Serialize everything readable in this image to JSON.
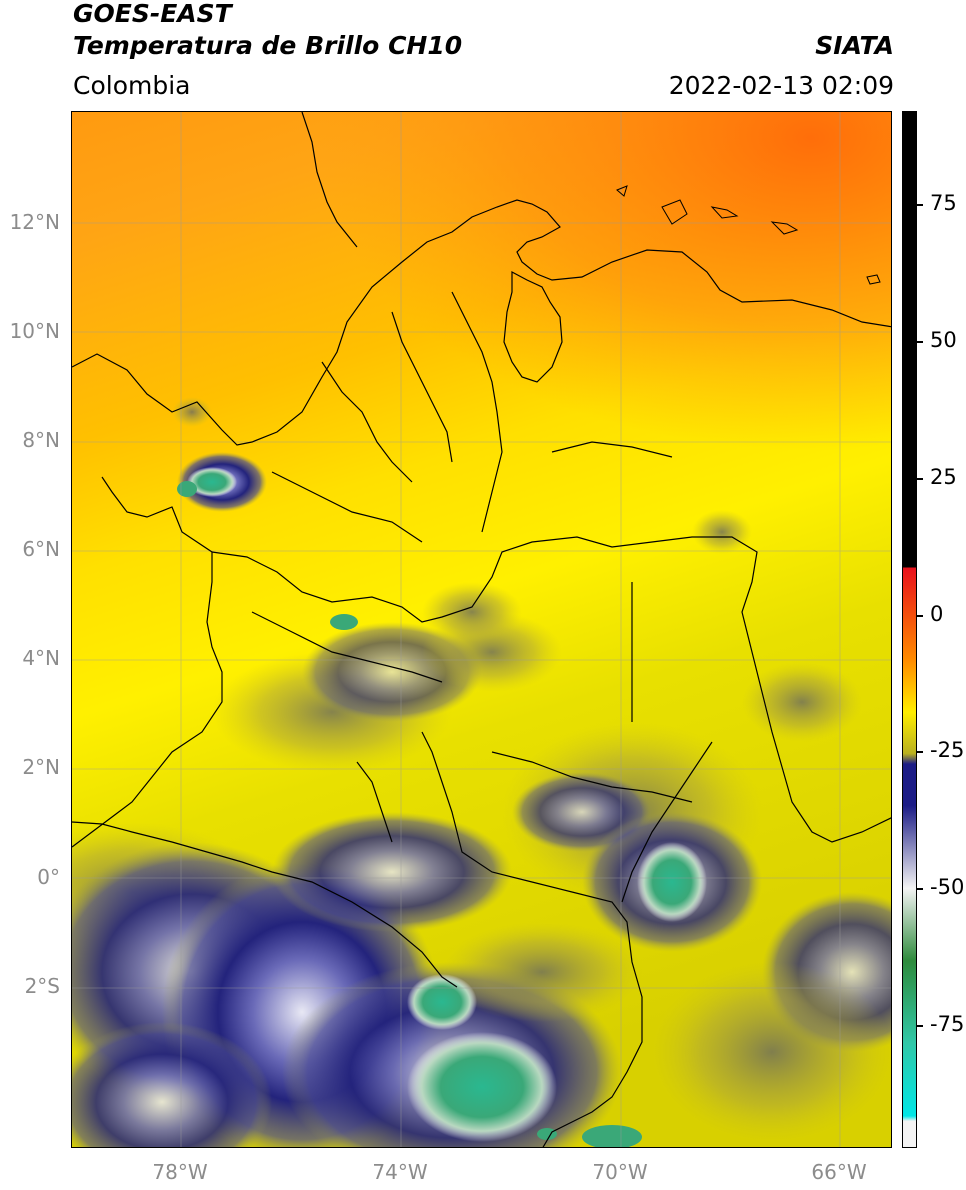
{
  "header": {
    "title_line1": "GOES-EAST",
    "title_line2": "Temperatura de Brillo CH10",
    "region": "Colombia",
    "source": "SIATA",
    "datetime": "2022-02-13 02:09"
  },
  "axes": {
    "lat_labels": [
      "12°N",
      "10°N",
      "8°N",
      "6°N",
      "4°N",
      "2°N",
      "0°",
      "2°S"
    ],
    "lon_labels": [
      "78°W",
      "74°W",
      "70°W",
      "66°W"
    ]
  },
  "colorbar": {
    "tick_labels": [
      "75",
      "50",
      "25",
      "0",
      "-25",
      "-50",
      "-75"
    ],
    "colors": {
      "black": "#000000",
      "red": "#e8101c",
      "orange": "#ff8c00",
      "yellow": "#ffee00",
      "olive": "#b8b020",
      "navy": "#1c1c86",
      "white": "#f4f4f4",
      "green": "#2e8b3c",
      "teal": "#30c8a8",
      "cyan": "#00e6e6"
    }
  },
  "map": {
    "background_colors": {
      "orange_north": "#ff7a10",
      "orange": "#ffa010",
      "yellow": "#ffe800",
      "olive": "#c8c020",
      "navy": "#23237c",
      "white_cloud": "#e8e8f0",
      "green_core": "#3aaa78"
    }
  }
}
